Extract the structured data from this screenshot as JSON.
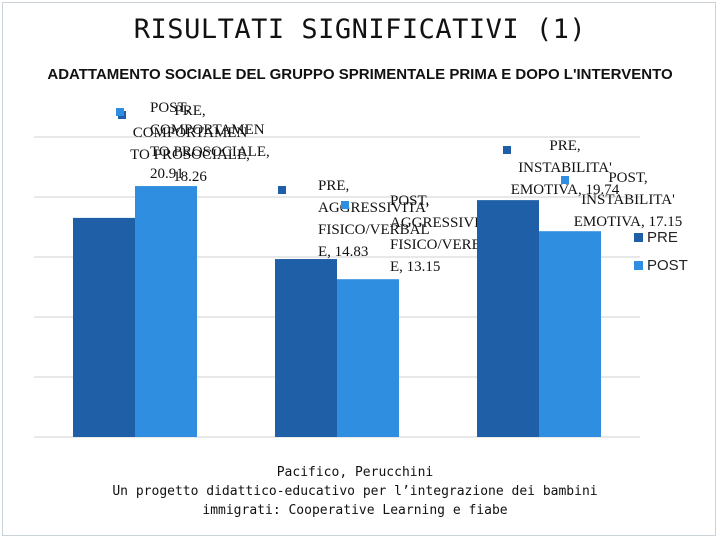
{
  "slide": {
    "title": "RISULTATI  SIGNIFICATIVI (1)"
  },
  "credits": {
    "authors": "Pacifico, Perucchini",
    "line1": "Un progetto didattico-educativo per l’integrazione dei bambini",
    "line2": "immigrati: Cooperative Learning e fiabe"
  },
  "colors": {
    "pre": "#1f5fa8",
    "post": "#2f8ee0",
    "grid": "#d0d0d0"
  },
  "chart_data": {
    "type": "bar",
    "title": "ADATTAMENTO SOCIALE DEL GRUPPO SPRIMENTALE PRIMA  E DOPO L'INTERVENTO",
    "categories": [
      "COMPORTAMENTO PROSOCIALE",
      "AGGRESSIVITA' FISICO/VERBALE",
      "INSTABILITA' EMOTIVA"
    ],
    "series": [
      {
        "name": "PRE",
        "values": [
          18.26,
          14.83,
          19.74
        ],
        "labels": [
          [
            "PRE,",
            "COMPORTAMEN",
            "TO PROSOCIALE,",
            "18.26"
          ],
          [
            "PRE,",
            "AGGRESSIVITA'",
            "FISICO/VERBAL",
            "E, 14.83"
          ],
          [
            "PRE,",
            "INSTABILITA'",
            "EMOTIVA, 19.74"
          ]
        ]
      },
      {
        "name": "POST",
        "values": [
          20.91,
          13.15,
          17.15
        ],
        "labels": [
          [
            "POST,",
            "COMPORTAMEN",
            "TO PROSOCIALE,",
            "20.91"
          ],
          [
            "POST,",
            "AGGRESSIVITA'",
            "FISICO/VERBAL",
            "E, 13.15"
          ],
          [
            "POST,",
            "INSTABILITA'",
            "EMOTIVA, 17.15"
          ]
        ]
      }
    ],
    "ylim": [
      0,
      25
    ],
    "grid": true,
    "legend": "right",
    "xlabel": "",
    "ylabel": ""
  }
}
